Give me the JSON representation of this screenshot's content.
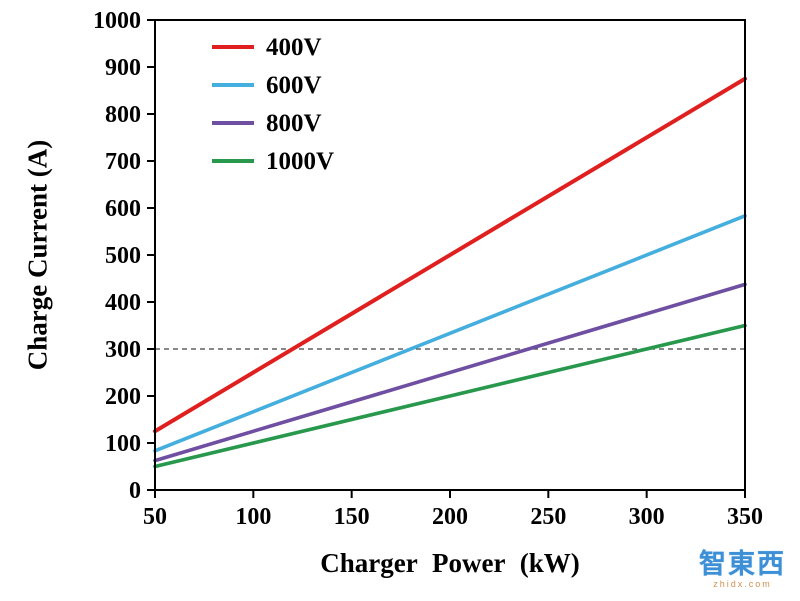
{
  "chart_data": {
    "type": "line",
    "title": "",
    "xlabel": "Charger Power (kW)",
    "ylabel": "Charge Current (A)",
    "xlim": [
      50,
      350
    ],
    "ylim": [
      0,
      1000
    ],
    "x_ticks": [
      50,
      100,
      150,
      200,
      250,
      300,
      350
    ],
    "y_ticks": [
      0,
      100,
      200,
      300,
      400,
      500,
      600,
      700,
      800,
      900,
      1000
    ],
    "grid": false,
    "legend_position": "top-left",
    "series": [
      {
        "name": "400V",
        "color": "#e01f1f",
        "x": [
          50,
          350
        ],
        "values": [
          125,
          875
        ]
      },
      {
        "name": "600V",
        "color": "#44aede",
        "x": [
          50,
          350
        ],
        "values": [
          83.3,
          583.3
        ]
      },
      {
        "name": "800V",
        "color": "#6e4fa1",
        "x": [
          50,
          350
        ],
        "values": [
          62.5,
          437.5
        ]
      },
      {
        "name": "1000V",
        "color": "#27984c",
        "x": [
          50,
          350
        ],
        "values": [
          50,
          350
        ]
      }
    ],
    "reference_line": {
      "y": 300,
      "color": "#404040",
      "style": "dashed"
    }
  },
  "watermark": {
    "text": "智東西",
    "subtext": "zhidx.com"
  }
}
